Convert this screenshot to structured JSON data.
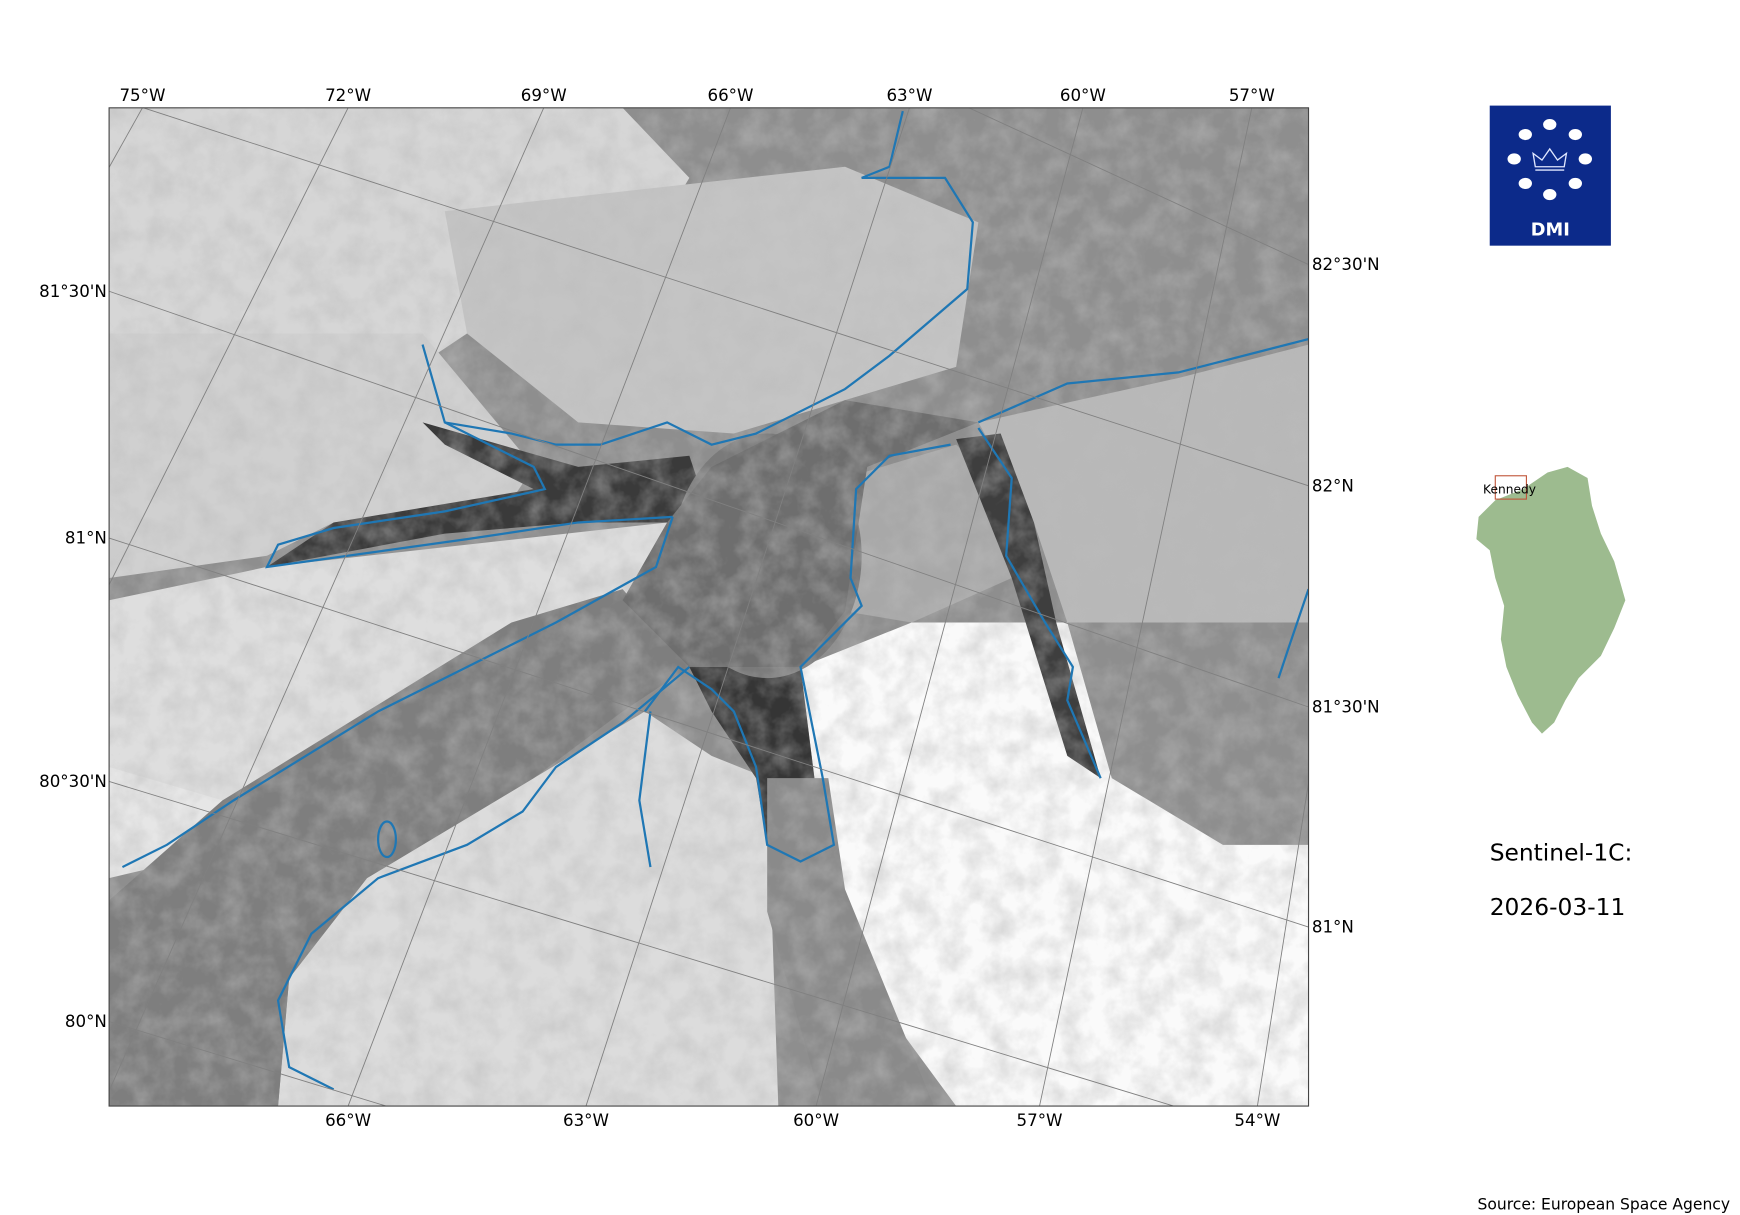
{
  "map": {
    "top_lon_labels": [
      "75°W",
      "72°W",
      "69°W",
      "66°W",
      "63°W",
      "60°W",
      "57°W"
    ],
    "bottom_lon_labels": [
      "66°W",
      "63°W",
      "60°W",
      "57°W",
      "54°W"
    ],
    "left_lat_labels": [
      "81°30'N",
      "81°N",
      "80°30'N",
      "80°N"
    ],
    "right_lat_labels": [
      "82°30'N",
      "82°N",
      "81°30'N",
      "81°N"
    ],
    "coastline_color": "#1f77b4",
    "gridline_color": "#808080"
  },
  "logo": {
    "text": "DMI",
    "color": "#0c2a8a"
  },
  "inset": {
    "region_label": "Kennedy",
    "land_color": "#9dbb8f",
    "box_color": "#c0553a"
  },
  "info": {
    "satellite": "Sentinel-1C:",
    "date": "2026-03-11"
  },
  "source": "Source: European Space Agency"
}
